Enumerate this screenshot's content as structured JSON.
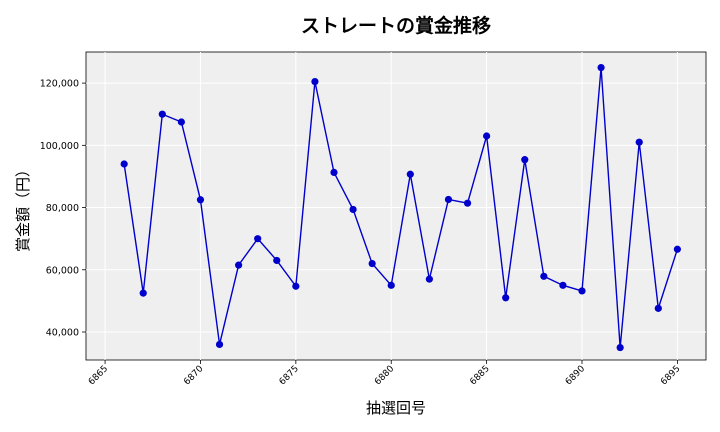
{
  "chart_data": {
    "type": "line",
    "title": "ストレートの賞金推移",
    "xlabel": "抽選回号",
    "ylabel": "賞金額（円）",
    "x_ticks": [
      6865,
      6870,
      6875,
      6880,
      6885,
      6890,
      6895
    ],
    "y_ticks": [
      40000,
      60000,
      80000,
      100000,
      120000
    ],
    "y_tick_labels": [
      "40,000",
      "60,000",
      "80,000",
      "100,000",
      "120,000"
    ],
    "xlim": [
      6864,
      6896.5
    ],
    "ylim": [
      31000,
      130000
    ],
    "grid": true,
    "colors": {
      "line": "#0000cc",
      "marker": "#0000cc",
      "plot_bg": "#efefef",
      "grid": "#ffffff"
    },
    "series": [
      {
        "x": [
          6866,
          6867,
          6868,
          6869,
          6870,
          6871,
          6872,
          6873,
          6874,
          6875,
          6876,
          6877,
          6878,
          6879,
          6880,
          6881,
          6882,
          6883,
          6884,
          6885,
          6886,
          6887,
          6888,
          6889,
          6890,
          6891,
          6892,
          6893,
          6894,
          6895
        ],
        "values": [
          94000,
          52500,
          110000,
          107500,
          82500,
          36000,
          61500,
          70000,
          63000,
          54700,
          120500,
          91300,
          79400,
          62000,
          55000,
          90700,
          57000,
          82600,
          81400,
          103000,
          51000,
          95400,
          57900,
          55000,
          53200,
          125000,
          35000,
          101000,
          47600,
          66600
        ]
      }
    ]
  }
}
